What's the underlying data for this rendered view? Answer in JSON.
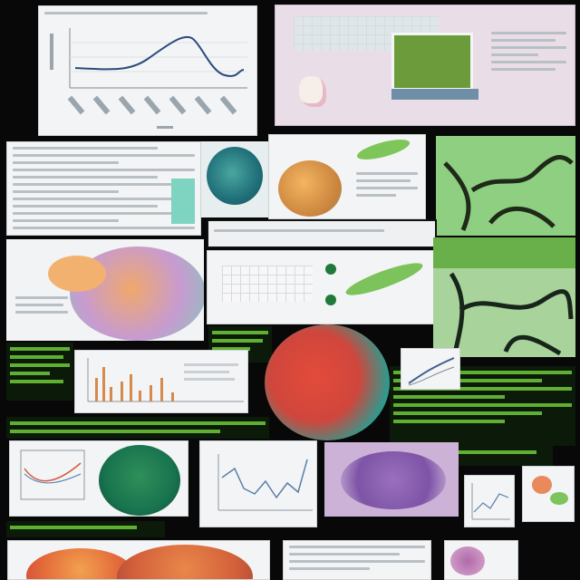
{
  "image_kind": "collage of scientific figures and page fragments",
  "colors": {
    "background": "#070807",
    "accent_green": "#6fcb3a",
    "leaf_green": "#7bbf5e",
    "orange": "#e8a24a",
    "purple": "#a77cc4",
    "red": "#d9493a",
    "teal": "#2e9e8e"
  },
  "icons": [
    "line-chart-icon",
    "bar-chart-icon",
    "organ-illustration-icon",
    "cell-micrograph-icon",
    "vein-network-icon"
  ]
}
